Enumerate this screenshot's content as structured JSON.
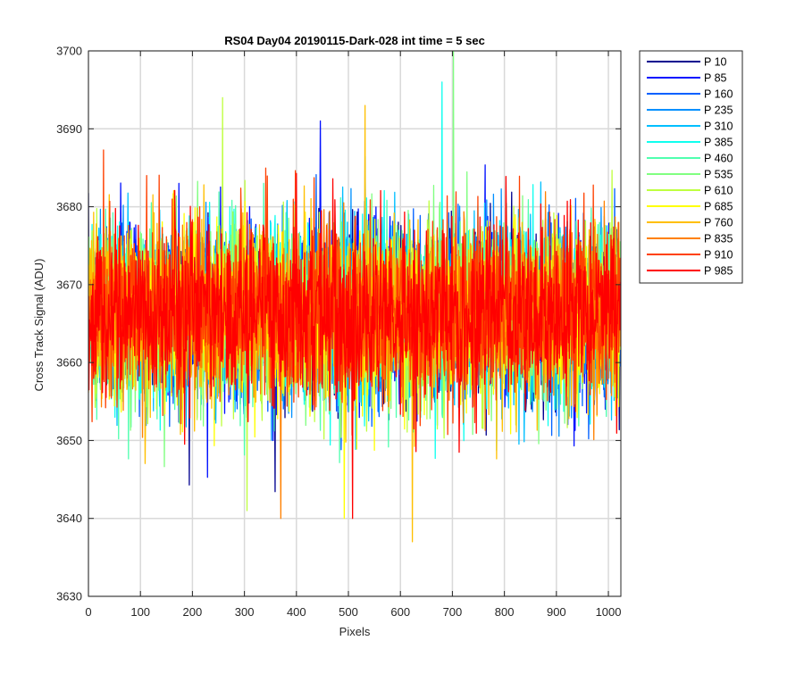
{
  "chart_data": {
    "type": "line",
    "title": "RS04 Day04 20190115-Dark-028 int time = 5 sec",
    "xlabel": "Pixels",
    "ylabel": "Cross Track Signal (ADU)",
    "xlim": [
      0,
      1024
    ],
    "ylim": [
      3630,
      3700
    ],
    "x_ticks": [
      0,
      100,
      200,
      300,
      400,
      500,
      600,
      700,
      800,
      900,
      1000
    ],
    "y_ticks": [
      3630,
      3640,
      3650,
      3660,
      3670,
      3680,
      3690,
      3700
    ],
    "grid": true,
    "legend_position": "outside-top-right",
    "series_summary": {
      "mean": 3666,
      "spread": 10,
      "points_per_series": 1024
    },
    "series": [
      {
        "name": "P 10",
        "color": "#00008f",
        "x_start": 0,
        "x_step": 1
      },
      {
        "name": "P 85",
        "color": "#0010ff",
        "x_start": 0,
        "x_step": 1
      },
      {
        "name": "P 160",
        "color": "#0060ff",
        "x_start": 0,
        "x_step": 1
      },
      {
        "name": "P 235",
        "color": "#0090ff",
        "x_start": 0,
        "x_step": 1
      },
      {
        "name": "P 310",
        "color": "#00bfff",
        "x_start": 0,
        "x_step": 1
      },
      {
        "name": "P 385",
        "color": "#10ffef",
        "x_start": 0,
        "x_step": 1
      },
      {
        "name": "P 460",
        "color": "#50ffaf",
        "x_start": 0,
        "x_step": 1
      },
      {
        "name": "P 535",
        "color": "#80ff80",
        "x_start": 0,
        "x_step": 1
      },
      {
        "name": "P 610",
        "color": "#bfff40",
        "x_start": 0,
        "x_step": 1
      },
      {
        "name": "P 685",
        "color": "#ffff00",
        "x_start": 0,
        "x_step": 1
      },
      {
        "name": "P 760",
        "color": "#ffbf00",
        "x_start": 0,
        "x_step": 1
      },
      {
        "name": "P 835",
        "color": "#ff8000",
        "x_start": 0,
        "x_step": 1
      },
      {
        "name": "P 910",
        "color": "#ff4000",
        "x_start": 0,
        "x_step": 1
      },
      {
        "name": "P 985",
        "color": "#ff0000",
        "x_start": 0,
        "x_step": 1
      }
    ],
    "notable_points": [
      {
        "series": "P 535",
        "x": 702,
        "y": 3700
      },
      {
        "series": "P 385",
        "x": 680,
        "y": 3696
      },
      {
        "series": "P 610",
        "x": 258,
        "y": 3694
      },
      {
        "series": "P 760",
        "x": 532,
        "y": 3693
      },
      {
        "series": "P 85",
        "x": 446,
        "y": 3691
      },
      {
        "series": "P 760",
        "x": 623,
        "y": 3637
      },
      {
        "series": "P 610",
        "x": 305,
        "y": 3641
      },
      {
        "series": "P 835",
        "x": 370,
        "y": 3640
      },
      {
        "series": "P 985",
        "x": 508,
        "y": 3640
      },
      {
        "series": "P 685",
        "x": 492,
        "y": 3640
      }
    ]
  }
}
